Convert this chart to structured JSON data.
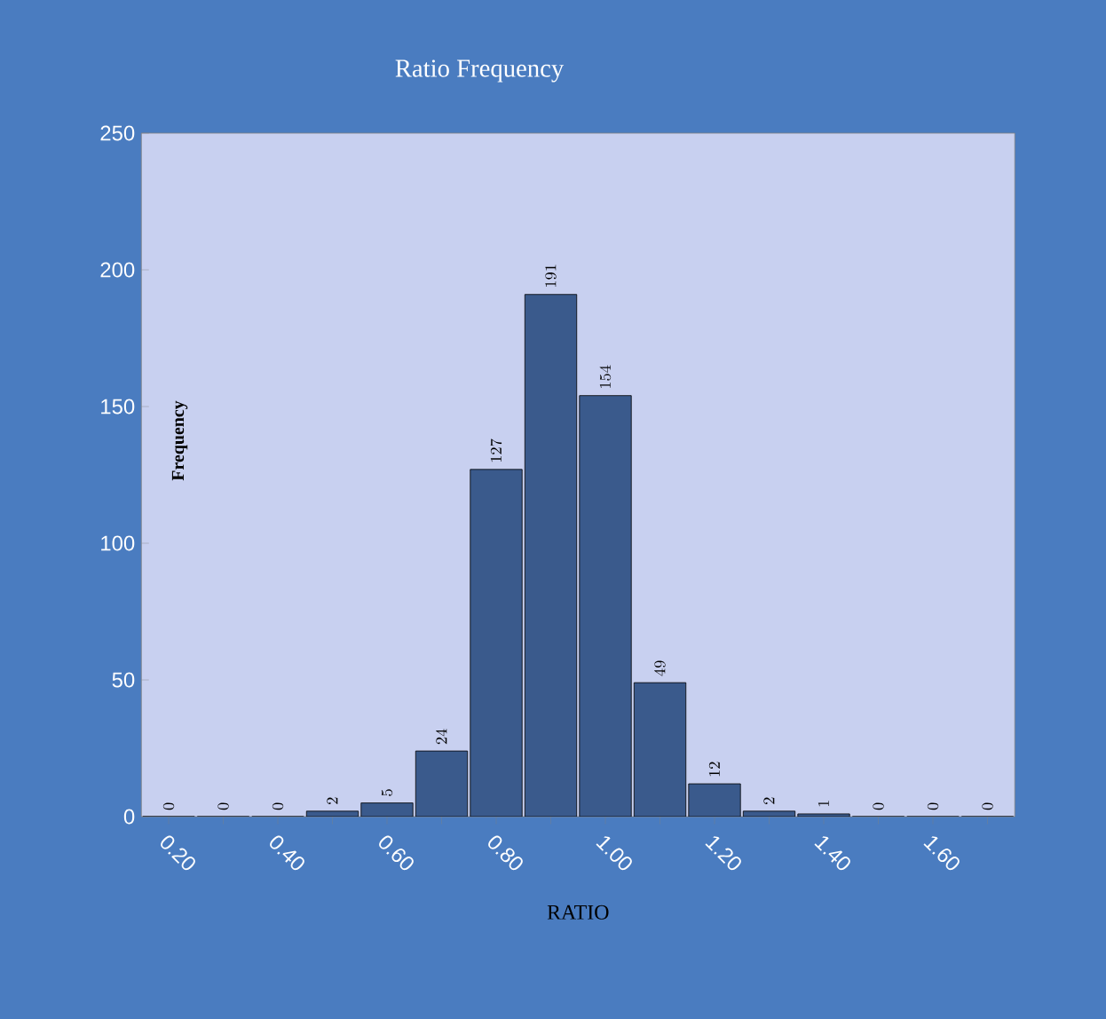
{
  "chart_data": {
    "type": "bar",
    "title": "Ratio Frequency",
    "xlabel": "RATIO",
    "ylabel": "Frequency",
    "categories": [
      "0.20",
      null,
      "0.40",
      null,
      "0.60",
      null,
      "0.80",
      null,
      "1.00",
      null,
      "1.20",
      null,
      "1.40",
      null,
      "1.60",
      null
    ],
    "values": [
      0,
      0,
      0,
      2,
      5,
      24,
      127,
      191,
      154,
      49,
      12,
      2,
      1,
      0,
      0,
      0
    ],
    "color": "#3a5a8c",
    "ylim": [
      0,
      250
    ],
    "yticks": [
      0,
      50,
      100,
      150,
      200,
      250
    ],
    "data_labels": true
  }
}
